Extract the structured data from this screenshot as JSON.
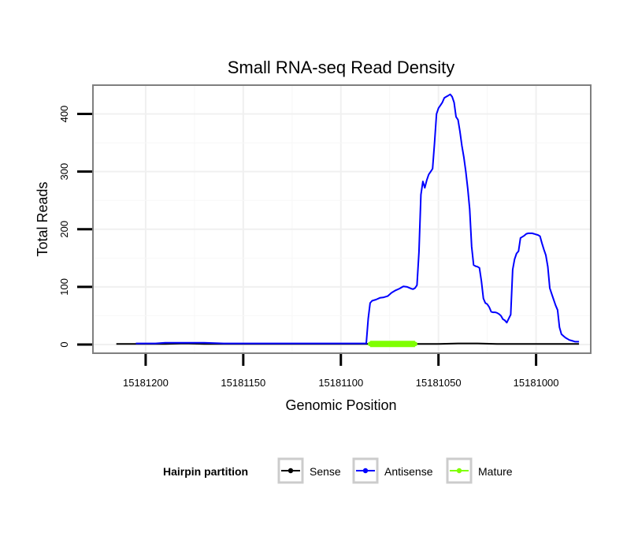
{
  "chart_data": {
    "type": "line",
    "title": "Small RNA-seq Read Density",
    "xlabel": "Genomic Position",
    "ylabel": "Total Reads",
    "xlim": [
      15181227,
      15180972
    ],
    "x_reversed": true,
    "ylim": [
      -15,
      450
    ],
    "x_ticks": [
      15181200,
      15181150,
      15181100,
      15181050,
      15181000
    ],
    "x_tick_labels": [
      "15181200",
      "15181150",
      "15181100",
      "15181050",
      "15181000"
    ],
    "y_ticks": [
      0,
      100,
      200,
      300,
      400
    ],
    "y_tick_labels": [
      "0",
      "100",
      "200",
      "300",
      "400"
    ],
    "grid": true,
    "legend": {
      "title": "Hairpin partition",
      "position": "bottom",
      "entries": [
        "Sense",
        "Antisense",
        "Mature"
      ]
    },
    "series": [
      {
        "name": "Sense",
        "color": "#000000",
        "x": [
          15181215,
          15181190,
          15181180,
          15181170,
          15181150,
          15181100,
          15181085,
          15181070,
          15181060,
          15181050,
          15181040,
          15181030,
          15181020,
          15181000,
          15180978
        ],
        "values": [
          1,
          1,
          2,
          1,
          1,
          1,
          1,
          1,
          1,
          1,
          2,
          2,
          1,
          1,
          1
        ]
      },
      {
        "name": "Antisense",
        "color": "#0000ff",
        "x": [
          15181205,
          15181195,
          15181190,
          15181185,
          15181180,
          15181170,
          15181160,
          15181140,
          15181120,
          15181100,
          15181087,
          15181086,
          15181085,
          15181084,
          15181082,
          15181080,
          15181078,
          15181076,
          15181074,
          15181072,
          15181070,
          15181068,
          15181066,
          15181064,
          15181063,
          15181062,
          15181061,
          15181060,
          15181059,
          15181058,
          15181057,
          15181056,
          15181055,
          15181054,
          15181053,
          15181052,
          15181051,
          15181050,
          15181049,
          15181048,
          15181047,
          15181046,
          15181045,
          15181044,
          15181043,
          15181042,
          15181041,
          15181040,
          15181039,
          15181038,
          15181037,
          15181036,
          15181035,
          15181034,
          15181033,
          15181032,
          15181031,
          15181030,
          15181029,
          15181028,
          15181027,
          15181026,
          15181025,
          15181024,
          15181023,
          15181022,
          15181021,
          15181020,
          15181019,
          15181018,
          15181017,
          15181016,
          15181015,
          15181014,
          15181013,
          15181012,
          15181011,
          15181010,
          15181009,
          15181008,
          15181007,
          15181006,
          15181005,
          15181004,
          15181003,
          15181002,
          15181001,
          15181000,
          15180999,
          15180998,
          15180997,
          15180996,
          15180995,
          15180994,
          15180993,
          15180992,
          15180991,
          15180990,
          15180989,
          15180988,
          15180987,
          15180986,
          15180985,
          15180984,
          15180983,
          15180982,
          15180981,
          15180980,
          15180979,
          15180978
        ],
        "values": [
          2,
          2,
          3,
          3,
          3,
          3,
          2,
          2,
          2,
          2,
          2,
          45,
          72,
          76,
          78,
          81,
          82,
          84,
          90,
          94,
          97,
          101,
          100,
          97,
          96,
          98,
          103,
          160,
          260,
          283,
          272,
          285,
          295,
          300,
          305,
          350,
          400,
          410,
          415,
          420,
          428,
          430,
          432,
          434,
          430,
          420,
          395,
          390,
          370,
          345,
          325,
          300,
          270,
          235,
          170,
          138,
          136,
          135,
          133,
          110,
          80,
          72,
          70,
          65,
          57,
          56,
          56,
          55,
          53,
          50,
          44,
          42,
          38,
          45,
          52,
          130,
          148,
          158,
          162,
          185,
          187,
          189,
          192,
          193,
          193,
          193,
          192,
          191,
          190,
          188,
          176,
          165,
          155,
          135,
          98,
          88,
          78,
          68,
          60,
          30,
          18,
          15,
          12,
          10,
          8,
          7,
          6,
          5,
          5,
          5
        ],
        "end_x": 15180978
      },
      {
        "name": "Mature",
        "color": "#7fff00",
        "x": [
          15181085,
          15181081,
          15181077,
          15181073,
          15181069,
          15181065,
          15181062
        ],
        "values": [
          1,
          1,
          1,
          1,
          1,
          1,
          1
        ]
      }
    ]
  }
}
